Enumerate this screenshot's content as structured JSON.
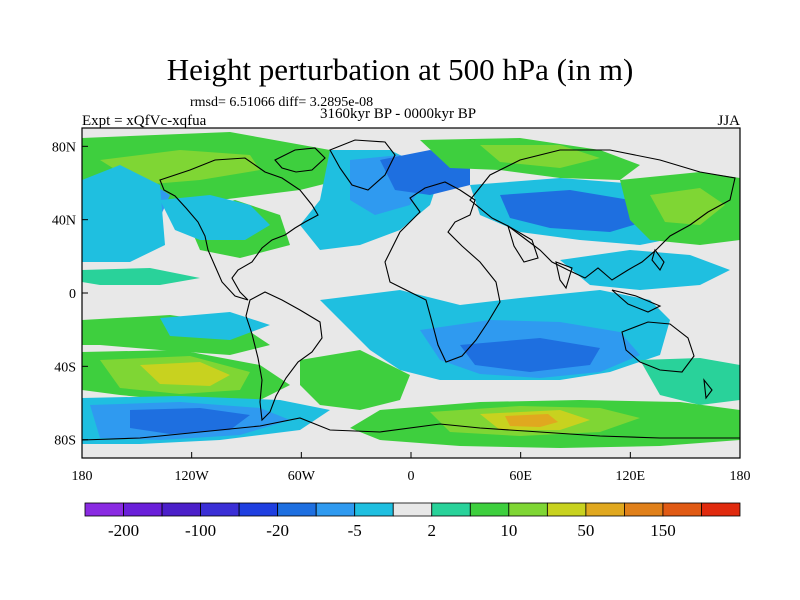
{
  "header": {
    "title": "Height perturbation at 500 hPa (in m)",
    "stats": "rmsd= 6.51066 diff= 3.2895e-08",
    "period": "3160kyr BP - 0000kyr BP",
    "experiment": "Expt = xQfVc-xqfua",
    "season": "JJA"
  },
  "map": {
    "projection": "cylindrical-equidistant",
    "lon_range": [
      -180,
      180
    ],
    "lat_range": [
      -90,
      90
    ],
    "lon_tick_labels": [
      "180",
      "120W",
      "60W",
      "0",
      "60E",
      "120E",
      "180"
    ],
    "lat_tick_labels": [
      "80N",
      "40N",
      "0",
      "40S",
      "80S"
    ],
    "coastlines": true
  },
  "colorbar": {
    "colors": [
      "#8a2be2",
      "#6a1fd9",
      "#4b1fc9",
      "#3b2fd6",
      "#1f3fe0",
      "#1e6fe0",
      "#2f9af0",
      "#1fbfe0",
      "#e8e8e8",
      "#29d29a",
      "#3ecf3e",
      "#7fd634",
      "#c8d21f",
      "#e0a81f",
      "#e0801a",
      "#e05a14",
      "#e02a0e"
    ],
    "tick_labels": [
      "-200",
      "-100",
      "-20",
      "-5",
      "2",
      "10",
      "50",
      "150"
    ]
  },
  "field_colors": {
    "neutral": "#e8e8e8",
    "neg_strong": "#1e6fe0",
    "neg_mid": "#2f9af0",
    "neg_weak": "#1fbfe0",
    "pos_weak": "#29d29a",
    "pos_mid": "#3ecf3e",
    "pos_strong": "#7fd634",
    "pos_high": "#c8d21f",
    "pos_top": "#e0a81f"
  }
}
